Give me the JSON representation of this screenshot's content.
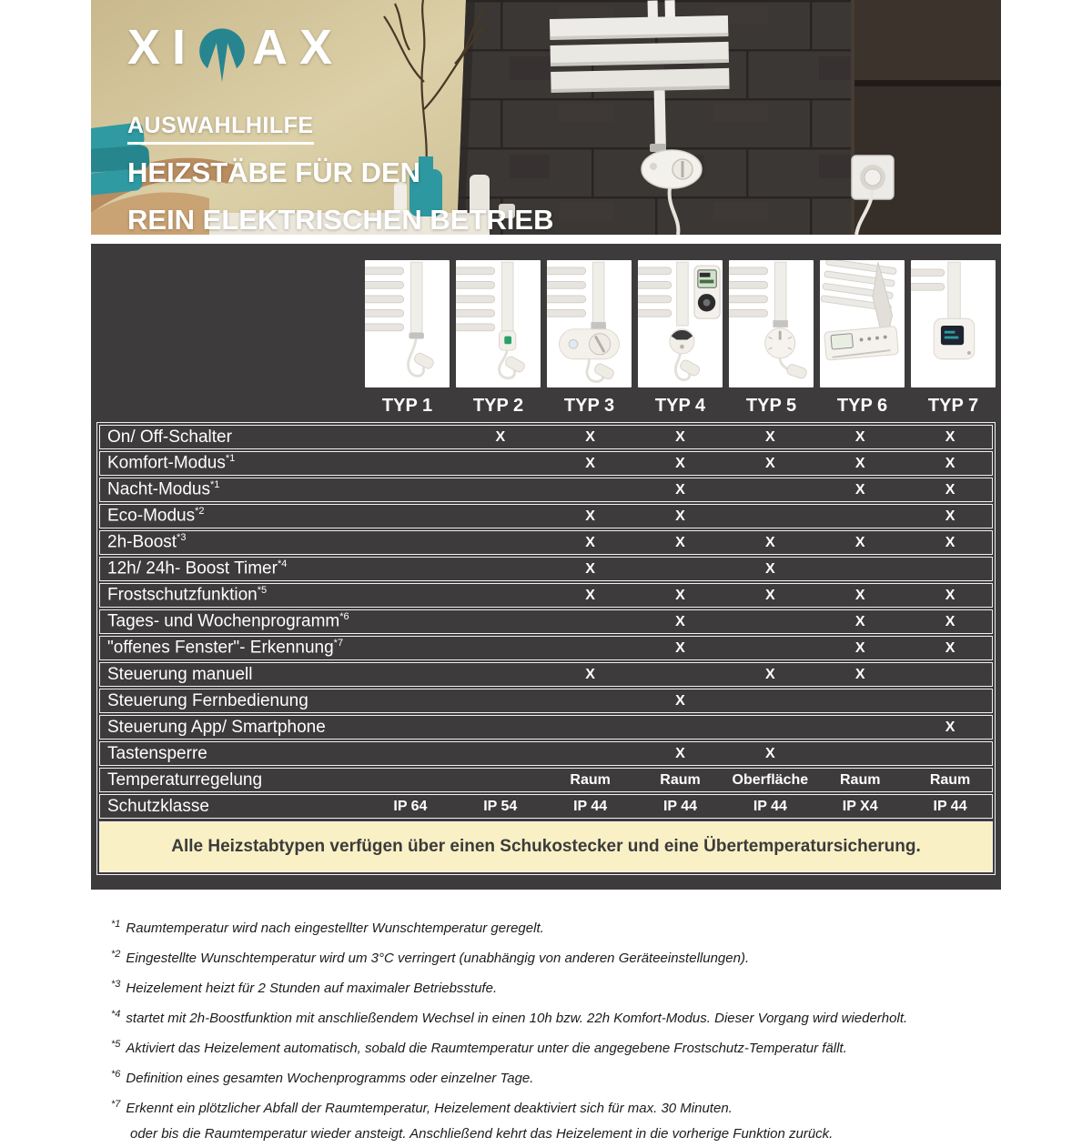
{
  "header": {
    "logo_pre": "XI",
    "logo_post": "AX",
    "tagline": "AUSWAHLHILFE",
    "title_line1": "HEIZSTÄBE FÜR DEN",
    "title_line2": "REIN ELEKTRISCHEN BETRIEB"
  },
  "table": {
    "columns": [
      "TYP 1",
      "TYP 2",
      "TYP 3",
      "TYP 4",
      "TYP 5",
      "TYP 6",
      "TYP 7"
    ],
    "rows": [
      {
        "label": "On/ Off-Schalter",
        "sup": "",
        "values": [
          "",
          "X",
          "X",
          "X",
          "X",
          "X",
          "X"
        ]
      },
      {
        "label": "Komfort-Modus",
        "sup": "*1",
        "values": [
          "",
          "",
          "X",
          "X",
          "X",
          "X",
          "X"
        ]
      },
      {
        "label": "Nacht-Modus",
        "sup": "*1",
        "values": [
          "",
          "",
          "",
          "X",
          "",
          "X",
          "X"
        ]
      },
      {
        "label": "Eco-Modus",
        "sup": "*2",
        "values": [
          "",
          "",
          "X",
          "X",
          "",
          "",
          "X"
        ]
      },
      {
        "label": "2h-Boost",
        "sup": "*3",
        "values": [
          "",
          "",
          "X",
          "X",
          "X",
          "X",
          "X"
        ]
      },
      {
        "label": "12h/ 24h- Boost Timer",
        "sup": "*4",
        "values": [
          "",
          "",
          "X",
          "",
          "X",
          "",
          ""
        ]
      },
      {
        "label": "Frostschutzfunktion",
        "sup": "*5",
        "values": [
          "",
          "",
          "X",
          "X",
          "X",
          "X",
          "X"
        ]
      },
      {
        "label": "Tages- und Wochenprogramm",
        "sup": "*6",
        "values": [
          "",
          "",
          "",
          "X",
          "",
          "X",
          "X"
        ]
      },
      {
        "label": "\"offenes Fenster\"- Erkennung",
        "sup": "*7",
        "values": [
          "",
          "",
          "",
          "X",
          "",
          "X",
          "X"
        ]
      },
      {
        "label": "Steuerung manuell",
        "sup": "",
        "values": [
          "",
          "",
          "X",
          "",
          "X",
          "X",
          ""
        ]
      },
      {
        "label": "Steuerung Fernbedienung",
        "sup": "",
        "values": [
          "",
          "",
          "",
          "X",
          "",
          "",
          ""
        ]
      },
      {
        "label": "Steuerung App/ Smartphone",
        "sup": "",
        "values": [
          "",
          "",
          "",
          "",
          "",
          "",
          "X"
        ]
      },
      {
        "label": "Tastensperre",
        "sup": "",
        "values": [
          "",
          "",
          "",
          "X",
          "X",
          "",
          ""
        ]
      },
      {
        "label": "Temperaturregelung",
        "sup": "",
        "values": [
          "",
          "",
          "Raum",
          "Raum",
          "Oberfläche",
          "Raum",
          "Raum"
        ]
      },
      {
        "label": "Schutzklasse",
        "sup": "",
        "values": [
          "IP 64",
          "IP 54",
          "IP 44",
          "IP 44",
          "IP 44",
          "IP X4",
          "IP 44"
        ]
      }
    ],
    "banner": "Alle Heizstabtypen verfügen über einen Schukostecker und eine Übertemperatursicherung."
  },
  "footnotes": [
    {
      "marker": "*1",
      "text": "Raumtemperatur wird nach eingestellter Wunschtemperatur geregelt."
    },
    {
      "marker": "*2",
      "text": "Eingestellte Wunschtemperatur wird um 3°C verringert (unabhängig von anderen Geräteeinstellungen)."
    },
    {
      "marker": "*3",
      "text": "Heizelement heizt für 2 Stunden auf maximaler Betriebsstufe."
    },
    {
      "marker": "*4",
      "text": "startet mit 2h-Boostfunktion mit anschließendem Wechsel in einen 10h bzw. 22h Komfort-Modus. Dieser Vorgang wird wiederholt."
    },
    {
      "marker": "*5",
      "text": "Aktiviert das Heizelement automatisch, sobald die Raumtemperatur unter die angegebene Frostschutz-Temperatur fällt."
    },
    {
      "marker": "*6",
      "text": "Definition eines gesamten Wochenprogramms oder einzelner Tage."
    },
    {
      "marker": "*7",
      "text": "Erkennt ein plötzlicher Abfall der Raumtemperatur, Heizelement deaktiviert sich für max. 30 Minuten.",
      "continuation": "oder bis die Raumtemperatur wieder ansteigt. Anschließend kehrt das Heizelement in die vorherige Funktion zurück."
    }
  ],
  "colors": {
    "accent_teal": "#27858f",
    "block_background": "#3d3b3c",
    "banner_background": "#faf0c5",
    "hero_wall_tan": "#cdbd93",
    "hero_tile_dark": "#3b3734"
  }
}
